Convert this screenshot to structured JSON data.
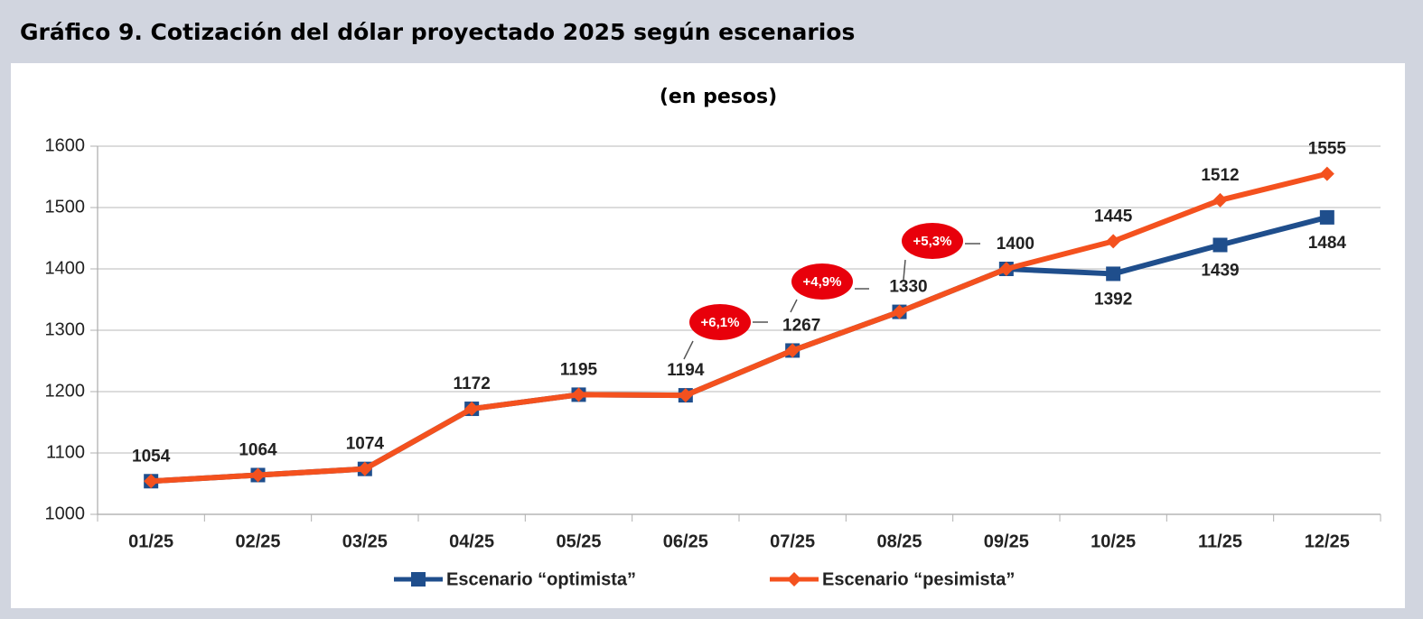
{
  "chart_data": {
    "type": "line",
    "title": "Gráfico 9. Cotización del dólar proyectado 2025 según escenarios",
    "subtitle": "(en pesos)",
    "categories": [
      "01/25",
      "02/25",
      "03/25",
      "04/25",
      "05/25",
      "06/25",
      "07/25",
      "08/25",
      "09/25",
      "10/25",
      "11/25",
      "12/25"
    ],
    "series": [
      {
        "name": "Escenario “optimista”",
        "color": "#1f4e8c",
        "marker": "square",
        "values": [
          1054,
          1064,
          1074,
          1172,
          1195,
          1194,
          1267,
          1330,
          1400,
          1392,
          1439,
          1484
        ]
      },
      {
        "name": "Escenario “pesimista”",
        "color": "#f4511e",
        "marker": "diamond",
        "values": [
          1054,
          1064,
          1074,
          1172,
          1195,
          1194,
          1267,
          1330,
          1400,
          1445,
          1512,
          1555
        ]
      }
    ],
    "annotations": [
      "+6,1%",
      "+4,9%",
      "+5,3%"
    ],
    "ylim": [
      1000,
      1600
    ],
    "yticks": [
      1000,
      1100,
      1200,
      1300,
      1400,
      1500,
      1600
    ],
    "grid": true,
    "legend": "bottom"
  }
}
